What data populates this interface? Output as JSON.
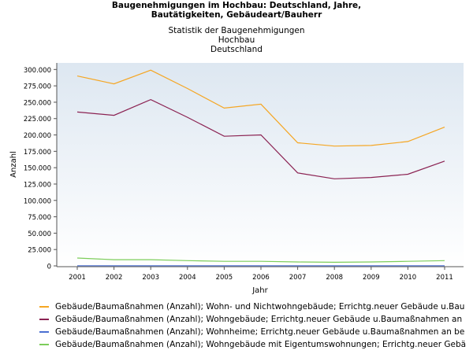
{
  "header": {
    "title_line1": "Baugenehmigungen im Hochbau: Deutschland, Jahre,",
    "title_line2": "Bautätigkeiten, Gebäudeart/Bauherr",
    "subtitle_line1": "Statistik der Baugenehmigungen",
    "subtitle_line2": "Hochbau",
    "subtitle_line3": "Deutschland"
  },
  "chart_data": {
    "type": "line",
    "title": "Baugenehmigungen im Hochbau: Deutschland, Jahre, Bautätigkeiten, Gebäudeart/Bauherr",
    "subtitle": "Statistik der Baugenehmigungen / Hochbau / Deutschland",
    "xlabel": "Jahr",
    "ylabel": "Anzahl",
    "ylim": [
      0,
      310000
    ],
    "yticks": [
      0,
      25000,
      50000,
      75000,
      100000,
      125000,
      150000,
      175000,
      200000,
      225000,
      250000,
      275000,
      300000
    ],
    "ytick_labels": [
      "0",
      "25.000",
      "50.000",
      "75.000",
      "100.000",
      "125.000",
      "150.000",
      "175.000",
      "200.000",
      "225.000",
      "250.000",
      "275.000",
      "300.000"
    ],
    "x": [
      "2001",
      "2002",
      "2003",
      "2004",
      "2005",
      "2006",
      "2007",
      "2008",
      "2009",
      "2010",
      "2011"
    ],
    "grid": false,
    "legend_position": "bottom",
    "series": [
      {
        "name": "Gebäude/Baumaßnahmen (Anzahl); Wohn- und Nichtwohngebäude; Errichtg.neuer Gebäude u.Bau",
        "color": "#f5a623",
        "values": [
          290000,
          278000,
          299000,
          271000,
          241000,
          247000,
          188000,
          183000,
          184000,
          190000,
          212000
        ]
      },
      {
        "name": "Gebäude/Baumaßnahmen (Anzahl); Wohngebäude; Errichtg.neuer Gebäude u.Baumaßnahmen an",
        "color": "#8b2252",
        "values": [
          235000,
          230000,
          254000,
          227000,
          198000,
          200000,
          142000,
          133000,
          135000,
          140000,
          160000
        ]
      },
      {
        "name": "Gebäude/Baumaßnahmen (Anzahl); Wohnheime; Errichtg.neuer Gebäude u.Baumaßnahmen an be",
        "color": "#4a6fd1",
        "values": [
          300,
          300,
          300,
          300,
          300,
          300,
          300,
          300,
          300,
          300,
          300
        ]
      },
      {
        "name": "Gebäude/Baumaßnahmen (Anzahl); Wohngebäude mit Eigentumswohnungen; Errichtg.neuer Gebä",
        "color": "#7ccd5a",
        "values": [
          12000,
          9500,
          9500,
          8000,
          7000,
          7000,
          6000,
          5500,
          6000,
          7000,
          8000
        ]
      }
    ]
  }
}
